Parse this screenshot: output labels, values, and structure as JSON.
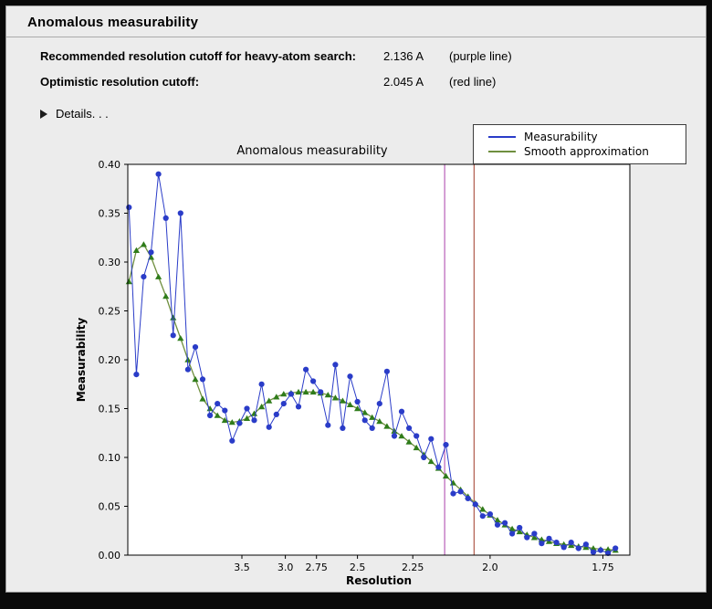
{
  "window": {
    "title": "Anomalous measurability"
  },
  "summary": {
    "rows": [
      {
        "label": "Recommended resolution cutoff for heavy-atom search:",
        "value": "2.136 A",
        "note": "(purple line)"
      },
      {
        "label": "Optimistic resolution cutoff:",
        "value": "2.045 A",
        "note": "(red line)"
      }
    ],
    "details": {
      "label": "Details. . ."
    }
  },
  "chart_data": {
    "type": "line",
    "title": "Anomalous measurability",
    "xlabel": "Resolution",
    "ylabel": "Measurability",
    "legend_position": "top-right",
    "x_axis": {
      "scale": "inverse_d_squared",
      "domain_inv_d_sq": [
        0.0042,
        0.3448
      ],
      "tick_labels": [
        "3.5",
        "3.0",
        "2.75",
        "2.5",
        "2.25",
        "2.0",
        "1.75"
      ]
    },
    "y_axis": {
      "range": [
        0.0,
        0.4
      ],
      "tick_labels": [
        "0.00",
        "0.05",
        "0.10",
        "0.15",
        "0.20",
        "0.25",
        "0.30",
        "0.35",
        "0.40"
      ]
    },
    "x_inv_d_sq": [
      0.005,
      0.01,
      0.015,
      0.02,
      0.025,
      0.03,
      0.035,
      0.04,
      0.045,
      0.05,
      0.055,
      0.06,
      0.065,
      0.07,
      0.075,
      0.08,
      0.085,
      0.09,
      0.095,
      0.1,
      0.105,
      0.11,
      0.115,
      0.12,
      0.125,
      0.13,
      0.135,
      0.14,
      0.145,
      0.15,
      0.155,
      0.16,
      0.165,
      0.17,
      0.175,
      0.18,
      0.185,
      0.19,
      0.195,
      0.2,
      0.205,
      0.21,
      0.215,
      0.22,
      0.225,
      0.23,
      0.235,
      0.24,
      0.245,
      0.25,
      0.255,
      0.26,
      0.265,
      0.27,
      0.275,
      0.28,
      0.285,
      0.29,
      0.295,
      0.3,
      0.305,
      0.31,
      0.315,
      0.32,
      0.325,
      0.33,
      0.335
    ],
    "series": [
      {
        "name": "Measurability",
        "color": "#2a3cc8",
        "marker": "circle",
        "values": [
          0.356,
          0.185,
          0.285,
          0.31,
          0.39,
          0.345,
          0.225,
          0.35,
          0.19,
          0.213,
          0.18,
          0.143,
          0.155,
          0.148,
          0.117,
          0.135,
          0.15,
          0.138,
          0.175,
          0.131,
          0.144,
          0.155,
          0.165,
          0.152,
          0.19,
          0.178,
          0.167,
          0.133,
          0.195,
          0.13,
          0.183,
          0.157,
          0.138,
          0.13,
          0.155,
          0.188,
          0.122,
          0.147,
          0.13,
          0.122,
          0.1,
          0.119,
          0.09,
          0.113,
          0.063,
          0.065,
          0.058,
          0.052,
          0.04,
          0.042,
          0.031,
          0.033,
          0.022,
          0.028,
          0.018,
          0.022,
          0.012,
          0.017,
          0.013,
          0.008,
          0.013,
          0.007,
          0.011,
          0.003,
          0.005,
          0.002,
          0.007
        ]
      },
      {
        "name": "Smooth approximation",
        "color": "#2f7c1a",
        "line_color": "#6f8f3f",
        "marker": "triangle",
        "values": [
          0.28,
          0.312,
          0.318,
          0.305,
          0.285,
          0.265,
          0.243,
          0.222,
          0.2,
          0.18,
          0.16,
          0.15,
          0.143,
          0.138,
          0.136,
          0.137,
          0.14,
          0.145,
          0.152,
          0.158,
          0.162,
          0.165,
          0.166,
          0.167,
          0.167,
          0.167,
          0.166,
          0.164,
          0.161,
          0.158,
          0.154,
          0.15,
          0.146,
          0.141,
          0.137,
          0.132,
          0.127,
          0.122,
          0.116,
          0.11,
          0.103,
          0.096,
          0.089,
          0.081,
          0.074,
          0.067,
          0.06,
          0.053,
          0.047,
          0.041,
          0.036,
          0.031,
          0.027,
          0.024,
          0.021,
          0.018,
          0.016,
          0.014,
          0.012,
          0.011,
          0.01,
          0.009,
          0.008,
          0.007,
          0.006,
          0.006,
          0.005
        ]
      }
    ],
    "vlines": [
      {
        "resolution_A": 2.136,
        "color": "#aa3faa",
        "label": "purple line"
      },
      {
        "resolution_A": 2.045,
        "color": "#a03b28",
        "label": "red line"
      }
    ]
  }
}
